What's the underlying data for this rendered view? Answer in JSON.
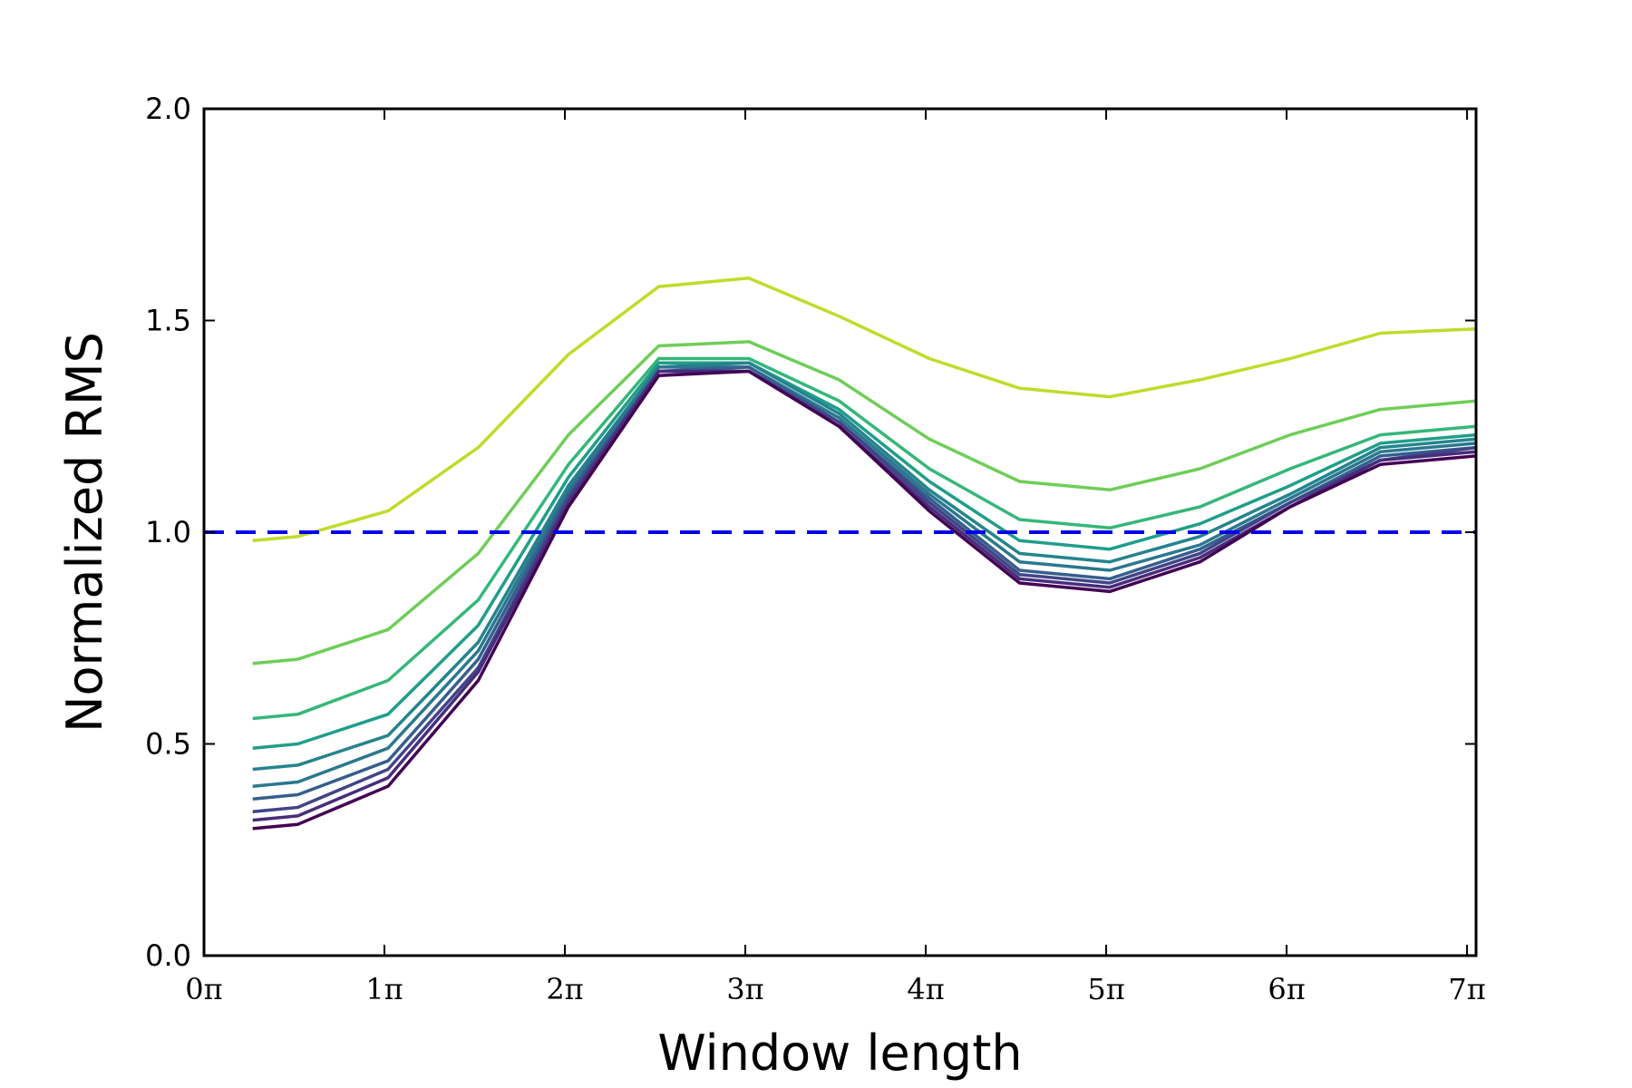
{
  "chart_data": {
    "type": "line",
    "title": "",
    "xlabel": "Window length",
    "ylabel": "Normalized RMS",
    "x_unit": "pi",
    "xlim": [
      0,
      7.05
    ],
    "ylim": [
      0,
      2
    ],
    "x_ticks": [
      0,
      1,
      2,
      3,
      4,
      5,
      6,
      7
    ],
    "x_tick_labels": [
      "0π",
      "1π",
      "2π",
      "3π",
      "4π",
      "5π",
      "6π",
      "7π"
    ],
    "y_ticks": [
      0,
      0.5,
      1,
      1.5,
      2
    ],
    "y_tick_labels": [
      "0.0",
      "0.5",
      "1.0",
      "1.5",
      "2.0"
    ],
    "grid": false,
    "legend": "none",
    "x": [
      0.27,
      0.52,
      1.02,
      1.52,
      2.02,
      2.52,
      3.02,
      3.52,
      4.02,
      4.52,
      5.02,
      5.52,
      6.02,
      6.52,
      7.05
    ],
    "reference_line": {
      "y": 1.0,
      "style": "dashed",
      "color": "#0000ee"
    },
    "series": [
      {
        "color": "#bfdc2a",
        "values": [
          0.98,
          0.99,
          1.05,
          1.2,
          1.42,
          1.58,
          1.6,
          1.51,
          1.41,
          1.34,
          1.32,
          1.36,
          1.41,
          1.47,
          1.48
        ]
      },
      {
        "color": "#6ece58",
        "values": [
          0.69,
          0.7,
          0.77,
          0.95,
          1.23,
          1.44,
          1.45,
          1.36,
          1.22,
          1.12,
          1.1,
          1.15,
          1.23,
          1.29,
          1.31
        ]
      },
      {
        "color": "#35b779",
        "values": [
          0.56,
          0.57,
          0.65,
          0.84,
          1.16,
          1.41,
          1.41,
          1.31,
          1.15,
          1.03,
          1.01,
          1.06,
          1.15,
          1.23,
          1.25
        ]
      },
      {
        "color": "#1f9e89",
        "values": [
          0.49,
          0.5,
          0.57,
          0.78,
          1.13,
          1.4,
          1.4,
          1.29,
          1.12,
          0.98,
          0.96,
          1.02,
          1.11,
          1.21,
          1.23
        ]
      },
      {
        "color": "#25848e",
        "values": [
          0.44,
          0.45,
          0.52,
          0.74,
          1.11,
          1.39,
          1.4,
          1.28,
          1.1,
          0.95,
          0.93,
          0.99,
          1.09,
          1.2,
          1.22
        ]
      },
      {
        "color": "#2a788e",
        "values": [
          0.4,
          0.41,
          0.49,
          0.72,
          1.1,
          1.39,
          1.39,
          1.27,
          1.09,
          0.93,
          0.91,
          0.97,
          1.08,
          1.19,
          1.21
        ]
      },
      {
        "color": "#355f8d",
        "values": [
          0.37,
          0.38,
          0.46,
          0.7,
          1.09,
          1.38,
          1.39,
          1.26,
          1.08,
          0.91,
          0.89,
          0.96,
          1.07,
          1.18,
          1.2
        ]
      },
      {
        "color": "#414487",
        "values": [
          0.34,
          0.35,
          0.44,
          0.68,
          1.08,
          1.38,
          1.38,
          1.26,
          1.07,
          0.9,
          0.88,
          0.95,
          1.07,
          1.17,
          1.2
        ]
      },
      {
        "color": "#472d7b",
        "values": [
          0.32,
          0.33,
          0.42,
          0.67,
          1.07,
          1.38,
          1.38,
          1.25,
          1.06,
          0.89,
          0.87,
          0.94,
          1.06,
          1.17,
          1.19
        ]
      },
      {
        "color": "#440154",
        "values": [
          0.3,
          0.31,
          0.4,
          0.65,
          1.06,
          1.37,
          1.38,
          1.25,
          1.05,
          0.88,
          0.86,
          0.93,
          1.06,
          1.16,
          1.18
        ]
      }
    ]
  }
}
